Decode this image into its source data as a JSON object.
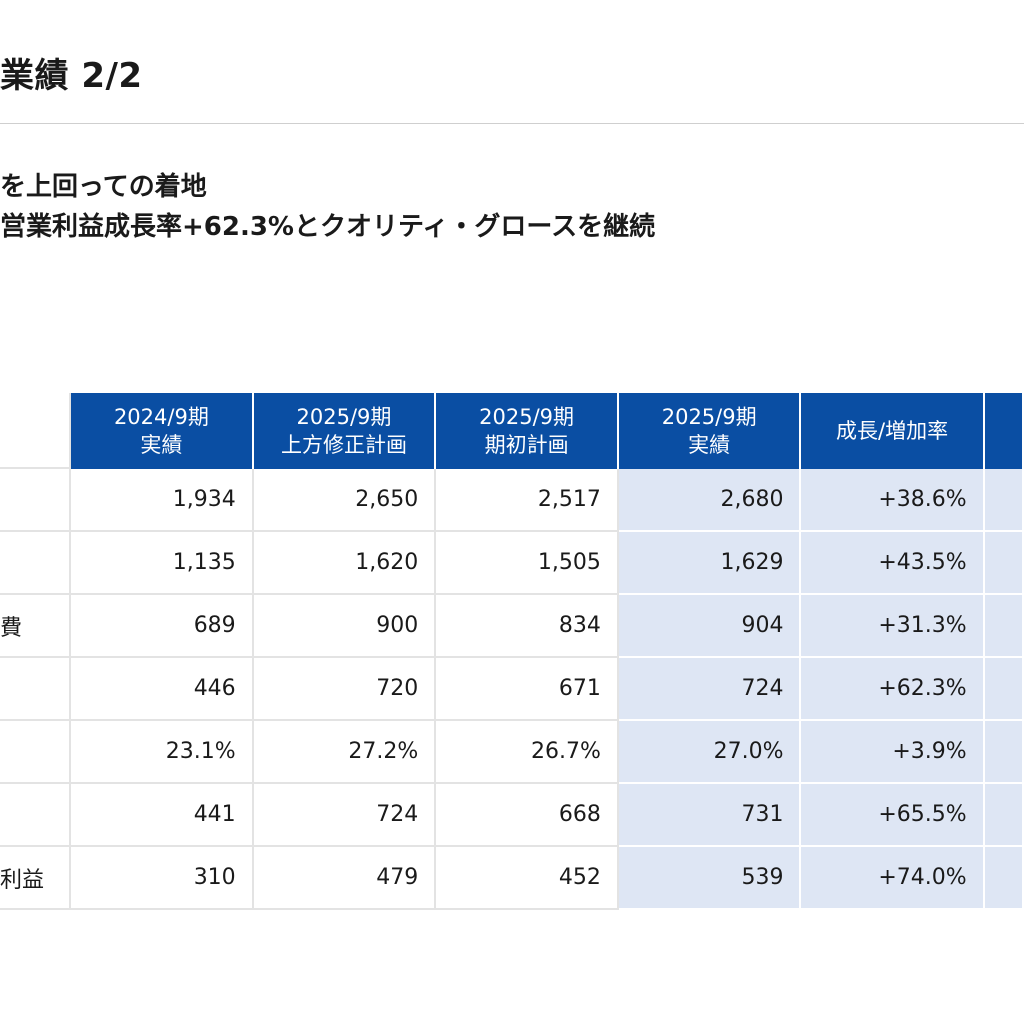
{
  "title": "業績 2/2",
  "lead": {
    "line1": "を上回っての着地",
    "line2": "営業利益成長率+62.3%とクオリティ・グロースを継続"
  },
  "table": {
    "headers": [
      {
        "line1": "2024/9期",
        "line2": "実績"
      },
      {
        "line1": "2025/9期",
        "line2": "上方修正計画"
      },
      {
        "line1": "2025/9期",
        "line2": "期初計画"
      },
      {
        "line1": "2025/9期",
        "line2": "実績"
      },
      {
        "line1": "成長/増加率",
        "line2": ""
      },
      {
        "line1": "",
        "line2": ""
      }
    ],
    "rows": [
      {
        "label": "",
        "cells": [
          "1,934",
          "2,650",
          "2,517",
          "2,680",
          "+38.6%",
          ""
        ]
      },
      {
        "label": "",
        "cells": [
          "1,135",
          "1,620",
          "1,505",
          "1,629",
          "+43.5%",
          ""
        ]
      },
      {
        "label": "費",
        "cells": [
          "689",
          "900",
          "834",
          "904",
          "+31.3%",
          ""
        ]
      },
      {
        "label": "",
        "cells": [
          "446",
          "720",
          "671",
          "724",
          "+62.3%",
          ""
        ]
      },
      {
        "label": "",
        "cells": [
          "23.1%",
          "27.2%",
          "26.7%",
          "27.0%",
          "+3.9%",
          ""
        ]
      },
      {
        "label": "",
        "cells": [
          "441",
          "724",
          "668",
          "731",
          "+65.5%",
          ""
        ]
      },
      {
        "label": "利益",
        "cells": [
          "310",
          "479",
          "452",
          "539",
          "+74.0%",
          ""
        ]
      }
    ]
  },
  "colors": {
    "header_blue": "#0a4ea3",
    "highlight": "#dee6f4",
    "grid": "#e3e3e3"
  }
}
